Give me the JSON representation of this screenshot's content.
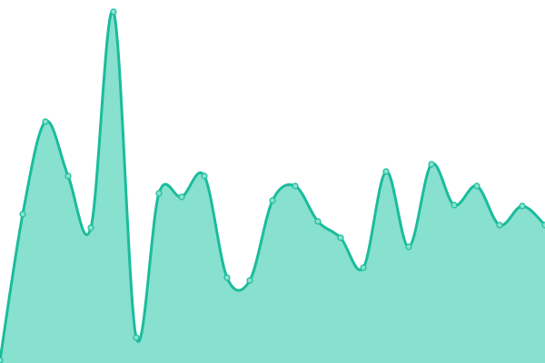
{
  "chart_data": {
    "type": "area",
    "title": "",
    "xlabel": "",
    "ylabel": "",
    "x": [
      0,
      1,
      2,
      3,
      4,
      5,
      6,
      7,
      8,
      9,
      10,
      11,
      12,
      13,
      14,
      15,
      16,
      17,
      18,
      19,
      20,
      21,
      22,
      23,
      24
    ],
    "values": [
      3,
      164,
      266,
      206,
      149,
      387,
      28,
      187,
      183,
      206,
      94,
      91,
      179,
      195,
      156,
      138,
      105,
      211,
      128,
      219,
      174,
      195,
      152,
      173,
      152
    ],
    "ylim": [
      0,
      400
    ],
    "xlim": [
      0,
      24
    ],
    "grid": false,
    "axes_visible": false,
    "curve": "smooth",
    "colors": {
      "line": "#1abc9c",
      "fill": "#88e0cf",
      "marker_fill": "#88e0cf",
      "marker_stroke": "#1abc9c"
    }
  }
}
